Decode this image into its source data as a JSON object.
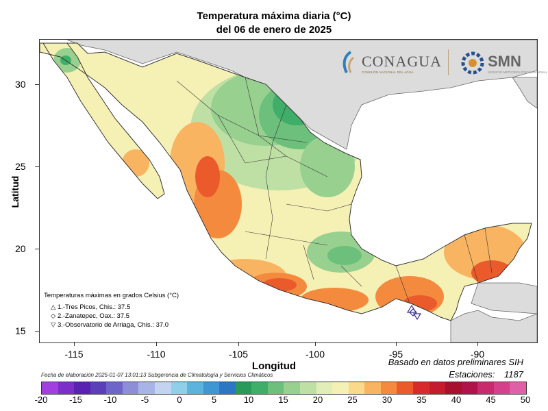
{
  "title": {
    "line1": "Temperatura máxima diaria (°C)",
    "line2": "del 06 de enero de 2025"
  },
  "axes": {
    "xlabel": "Longitud",
    "ylabel": "Latitud",
    "xticks": [
      "-115",
      "-110",
      "-105",
      "-100",
      "-95",
      "-90"
    ],
    "yticks": [
      "30",
      "25",
      "20",
      "15"
    ]
  },
  "logos": {
    "conagua": "CONAGUA",
    "conagua_sub": "COMISIÓN NACIONAL DEL AGUA",
    "smn": "SMN",
    "smn_sub": "SERVICIO METEOROLÓGICO NACIONAL"
  },
  "legend": {
    "title": "Temperaturas máximas en grados Celsius (°C)",
    "items": [
      {
        "marker": "△",
        "text": "1.-Tres Picos, Chis.: 37.5"
      },
      {
        "marker": "◇",
        "text": "2.-Zanatepec, Oax.: 37.5"
      },
      {
        "marker": "▽",
        "text": "3.-Observatorio de Arriaga, Chis.: 37.0"
      }
    ]
  },
  "notes": {
    "basado": "Basado en datos preliminares SIH",
    "estaciones_label": "Estaciones:",
    "estaciones_value": "1187",
    "fecha": "Fecha de elaboración 2025-01-07 13:01:13 Subgerencia de Climatología y Servicios Climáticos"
  },
  "colorbar": {
    "tick_labels": [
      "-20",
      "-15",
      "-10",
      "-5",
      "0",
      "5",
      "10",
      "15",
      "20",
      "25",
      "30",
      "35",
      "40",
      "45",
      "50"
    ],
    "colors": [
      "#a23fe0",
      "#7b2fc8",
      "#5a22b0",
      "#5a3fb8",
      "#6f65c8",
      "#8e8ed8",
      "#a9b4e6",
      "#c2d4f0",
      "#8fd0e8",
      "#5cb4dc",
      "#3e96d2",
      "#2c77c4",
      "#2a9a5a",
      "#3fae68",
      "#6cc07c",
      "#98d090",
      "#bfe0a4",
      "#e2eeb8",
      "#f5f0b4",
      "#fbd98a",
      "#f9b462",
      "#f48a3e",
      "#ea5a2a",
      "#d82a2a",
      "#c41c2c",
      "#a81030",
      "#b0134a",
      "#c82a6e",
      "#d5408a",
      "#e060a8"
    ]
  }
}
